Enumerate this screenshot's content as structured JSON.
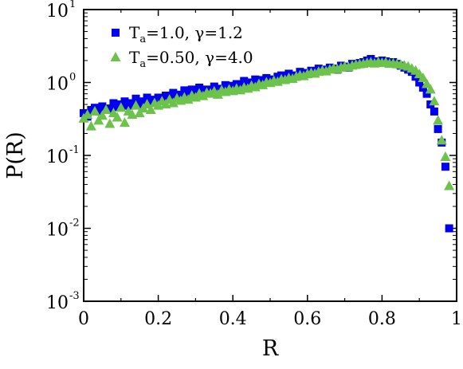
{
  "chart_data": {
    "type": "scatter",
    "xlabel": "R",
    "ylabel": "P(R)",
    "xlim": [
      0,
      1
    ],
    "ylim_log10": [
      -3,
      1
    ],
    "y_scale": "log",
    "grid": false,
    "legend_position": "top-left",
    "x_ticks": [
      "0",
      "0.2",
      "0.4",
      "0.6",
      "0.8",
      "1"
    ],
    "y_ticks": [
      {
        "base": "10",
        "exp": "-3"
      },
      {
        "base": "10",
        "exp": "-2"
      },
      {
        "base": "10",
        "exp": "-1"
      },
      {
        "base": "10",
        "exp": "0"
      },
      {
        "base": "10",
        "exp": "1"
      }
    ],
    "series": [
      {
        "name_main": "T",
        "name_sub": "a",
        "name_rest": "=1.0,  γ=1.2",
        "marker": "square",
        "color": "#0000ee",
        "x": [
          0.0,
          0.01,
          0.02,
          0.03,
          0.04,
          0.05,
          0.06,
          0.07,
          0.08,
          0.09,
          0.1,
          0.11,
          0.12,
          0.13,
          0.14,
          0.15,
          0.16,
          0.17,
          0.18,
          0.19,
          0.2,
          0.21,
          0.22,
          0.23,
          0.24,
          0.25,
          0.26,
          0.27,
          0.28,
          0.29,
          0.3,
          0.31,
          0.32,
          0.33,
          0.34,
          0.35,
          0.36,
          0.37,
          0.38,
          0.39,
          0.4,
          0.41,
          0.42,
          0.43,
          0.44,
          0.45,
          0.46,
          0.47,
          0.48,
          0.49,
          0.5,
          0.51,
          0.52,
          0.53,
          0.54,
          0.55,
          0.56,
          0.57,
          0.58,
          0.59,
          0.6,
          0.61,
          0.62,
          0.63,
          0.64,
          0.65,
          0.66,
          0.67,
          0.68,
          0.69,
          0.7,
          0.71,
          0.72,
          0.73,
          0.74,
          0.75,
          0.76,
          0.77,
          0.78,
          0.79,
          0.8,
          0.81,
          0.82,
          0.83,
          0.84,
          0.85,
          0.86,
          0.87,
          0.88,
          0.89,
          0.9,
          0.91,
          0.92,
          0.93,
          0.94,
          0.95,
          0.96,
          0.97,
          0.98
        ],
        "y": [
          0.38,
          0.34,
          0.42,
          0.45,
          0.4,
          0.47,
          0.44,
          0.43,
          0.52,
          0.46,
          0.5,
          0.55,
          0.48,
          0.52,
          0.6,
          0.5,
          0.55,
          0.62,
          0.53,
          0.58,
          0.62,
          0.57,
          0.66,
          0.6,
          0.72,
          0.63,
          0.68,
          0.78,
          0.68,
          0.8,
          0.72,
          0.85,
          0.78,
          0.8,
          0.76,
          0.88,
          0.82,
          0.8,
          0.92,
          0.84,
          0.9,
          0.95,
          0.86,
          1.05,
          0.92,
          1.0,
          1.1,
          0.95,
          1.08,
          1.15,
          1.05,
          1.1,
          1.2,
          1.25,
          1.15,
          1.32,
          1.25,
          1.2,
          1.4,
          1.35,
          1.3,
          1.45,
          1.4,
          1.55,
          1.5,
          1.45,
          1.6,
          1.55,
          1.5,
          1.7,
          1.65,
          1.6,
          1.8,
          1.75,
          1.85,
          1.9,
          2.0,
          2.1,
          1.95,
          1.9,
          2.0,
          1.95,
          1.85,
          1.9,
          1.8,
          1.7,
          1.6,
          1.5,
          1.4,
          1.2,
          1.0,
          0.85,
          0.7,
          0.5,
          0.4,
          0.23,
          0.15,
          0.07,
          0.01
        ]
      },
      {
        "name_main": "T",
        "name_sub": "a",
        "name_rest": "=0.50,  γ=4.0",
        "marker": "triangle",
        "color": "#6cc24a",
        "x": [
          0.0,
          0.01,
          0.02,
          0.03,
          0.04,
          0.05,
          0.06,
          0.07,
          0.08,
          0.09,
          0.1,
          0.11,
          0.12,
          0.13,
          0.14,
          0.15,
          0.16,
          0.17,
          0.18,
          0.19,
          0.2,
          0.21,
          0.22,
          0.23,
          0.24,
          0.25,
          0.26,
          0.27,
          0.28,
          0.29,
          0.3,
          0.31,
          0.32,
          0.33,
          0.34,
          0.35,
          0.36,
          0.37,
          0.38,
          0.39,
          0.4,
          0.41,
          0.42,
          0.43,
          0.44,
          0.45,
          0.46,
          0.47,
          0.48,
          0.49,
          0.5,
          0.51,
          0.52,
          0.53,
          0.54,
          0.55,
          0.56,
          0.57,
          0.58,
          0.59,
          0.6,
          0.61,
          0.62,
          0.63,
          0.64,
          0.65,
          0.66,
          0.67,
          0.68,
          0.69,
          0.7,
          0.71,
          0.72,
          0.73,
          0.74,
          0.75,
          0.76,
          0.77,
          0.78,
          0.79,
          0.8,
          0.81,
          0.82,
          0.83,
          0.84,
          0.85,
          0.86,
          0.87,
          0.88,
          0.89,
          0.9,
          0.91,
          0.92,
          0.93,
          0.94,
          0.95,
          0.96,
          0.97,
          0.98
        ],
        "y": [
          0.32,
          0.36,
          0.25,
          0.4,
          0.3,
          0.35,
          0.42,
          0.27,
          0.38,
          0.33,
          0.45,
          0.28,
          0.4,
          0.36,
          0.48,
          0.38,
          0.44,
          0.5,
          0.42,
          0.52,
          0.48,
          0.55,
          0.5,
          0.58,
          0.52,
          0.6,
          0.56,
          0.62,
          0.58,
          0.66,
          0.62,
          0.7,
          0.65,
          0.72,
          0.7,
          0.75,
          0.68,
          0.78,
          0.74,
          0.8,
          0.76,
          0.82,
          0.78,
          0.85,
          0.82,
          0.9,
          0.86,
          0.95,
          0.92,
          1.0,
          0.98,
          1.05,
          1.02,
          1.1,
          1.08,
          1.15,
          1.12,
          1.2,
          1.25,
          1.22,
          1.3,
          1.35,
          1.32,
          1.4,
          1.45,
          1.42,
          1.5,
          1.55,
          1.52,
          1.6,
          1.65,
          1.62,
          1.7,
          1.75,
          1.78,
          1.8,
          1.85,
          1.88,
          1.82,
          1.9,
          1.85,
          1.88,
          1.8,
          1.82,
          1.78,
          1.75,
          1.7,
          1.65,
          1.55,
          1.45,
          1.3,
          1.15,
          0.95,
          0.8,
          0.55,
          0.3,
          0.16,
          0.095,
          0.038
        ]
      }
    ]
  }
}
